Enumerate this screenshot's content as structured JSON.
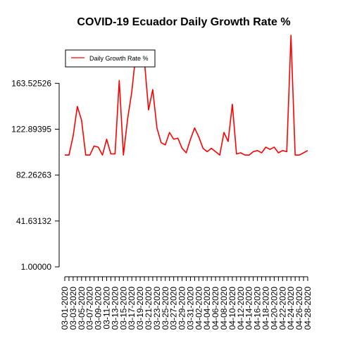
{
  "chart_data": {
    "type": "line",
    "title": "COVID-19 Ecuador Daily Growth Rate %",
    "xlabel": "",
    "ylabel": "",
    "grid": false,
    "legend_position": "top-left",
    "y_ticks": [
      "1.00000",
      "41.63132",
      "82.26263",
      "122.89395",
      "163.52526"
    ],
    "y_tick_values": [
      1.0,
      41.63132,
      82.26263,
      122.89395,
      163.52526
    ],
    "ylim": [
      1.0,
      200.5
    ],
    "x_tick_labels": [
      "03-01-2020",
      "03-03-2020",
      "03-05-2020",
      "03-07-2020",
      "03-09-2020",
      "03-11-2020",
      "03-13-2020",
      "03-15-2020",
      "03-17-2020",
      "03-19-2020",
      "03-21-2020",
      "03-23-2020",
      "03-25-2020",
      "03-27-2020",
      "03-29-2020",
      "03-31-2020",
      "04-02-2020",
      "04-04-2020",
      "04-06-2020",
      "04-08-2020",
      "04-10-2020",
      "04-12-2020",
      "04-14-2020",
      "04-16-2020",
      "04-18-2020",
      "04-20-2020",
      "04-22-2020",
      "04-24-2020",
      "04-26-2020",
      "04-28-2020"
    ],
    "series": [
      {
        "name": "Daily Growth Rate %",
        "color": "#ff0000",
        "x": [
          "03-01-2020",
          "03-02-2020",
          "03-03-2020",
          "03-04-2020",
          "03-05-2020",
          "03-06-2020",
          "03-07-2020",
          "03-08-2020",
          "03-09-2020",
          "03-10-2020",
          "03-11-2020",
          "03-12-2020",
          "03-13-2020",
          "03-14-2020",
          "03-15-2020",
          "03-16-2020",
          "03-17-2020",
          "03-18-2020",
          "03-19-2020",
          "03-20-2020",
          "03-21-2020",
          "03-22-2020",
          "03-23-2020",
          "03-24-2020",
          "03-25-2020",
          "03-26-2020",
          "03-27-2020",
          "03-28-2020",
          "03-29-2020",
          "03-30-2020",
          "03-31-2020",
          "04-01-2020",
          "04-02-2020",
          "04-03-2020",
          "04-04-2020",
          "04-05-2020",
          "04-06-2020",
          "04-07-2020",
          "04-08-2020",
          "04-09-2020",
          "04-10-2020",
          "04-11-2020",
          "04-12-2020",
          "04-13-2020",
          "04-14-2020",
          "04-15-2020",
          "04-16-2020",
          "04-17-2020",
          "04-18-2020",
          "04-19-2020",
          "04-20-2020",
          "04-21-2020",
          "04-22-2020",
          "04-23-2020",
          "04-24-2020",
          "04-25-2020",
          "04-26-2020",
          "04-27-2020",
          "04-28-2020"
        ],
        "values": [
          100.0,
          100.0,
          117.0,
          143.0,
          131.0,
          100.0,
          100.0,
          108.0,
          107.0,
          100.0,
          114.0,
          101.0,
          101.0,
          166.0,
          100.0,
          132.0,
          156.0,
          191.0,
          179.0,
          184.0,
          140.0,
          158.0,
          124.0,
          111.0,
          109.0,
          120.0,
          114.0,
          115.0,
          106.0,
          102.0,
          114.0,
          124.0,
          116.0,
          106.0,
          103.0,
          106.0,
          103.0,
          100.0,
          120.0,
          112.0,
          145.0,
          101.0,
          102.0,
          100.0,
          100.0,
          103.0,
          104.0,
          102.0,
          107.0,
          105.0,
          107.0,
          102.0,
          104.0,
          103.0,
          206.0,
          100.0,
          100.0,
          102.0,
          104.0
        ]
      }
    ]
  }
}
